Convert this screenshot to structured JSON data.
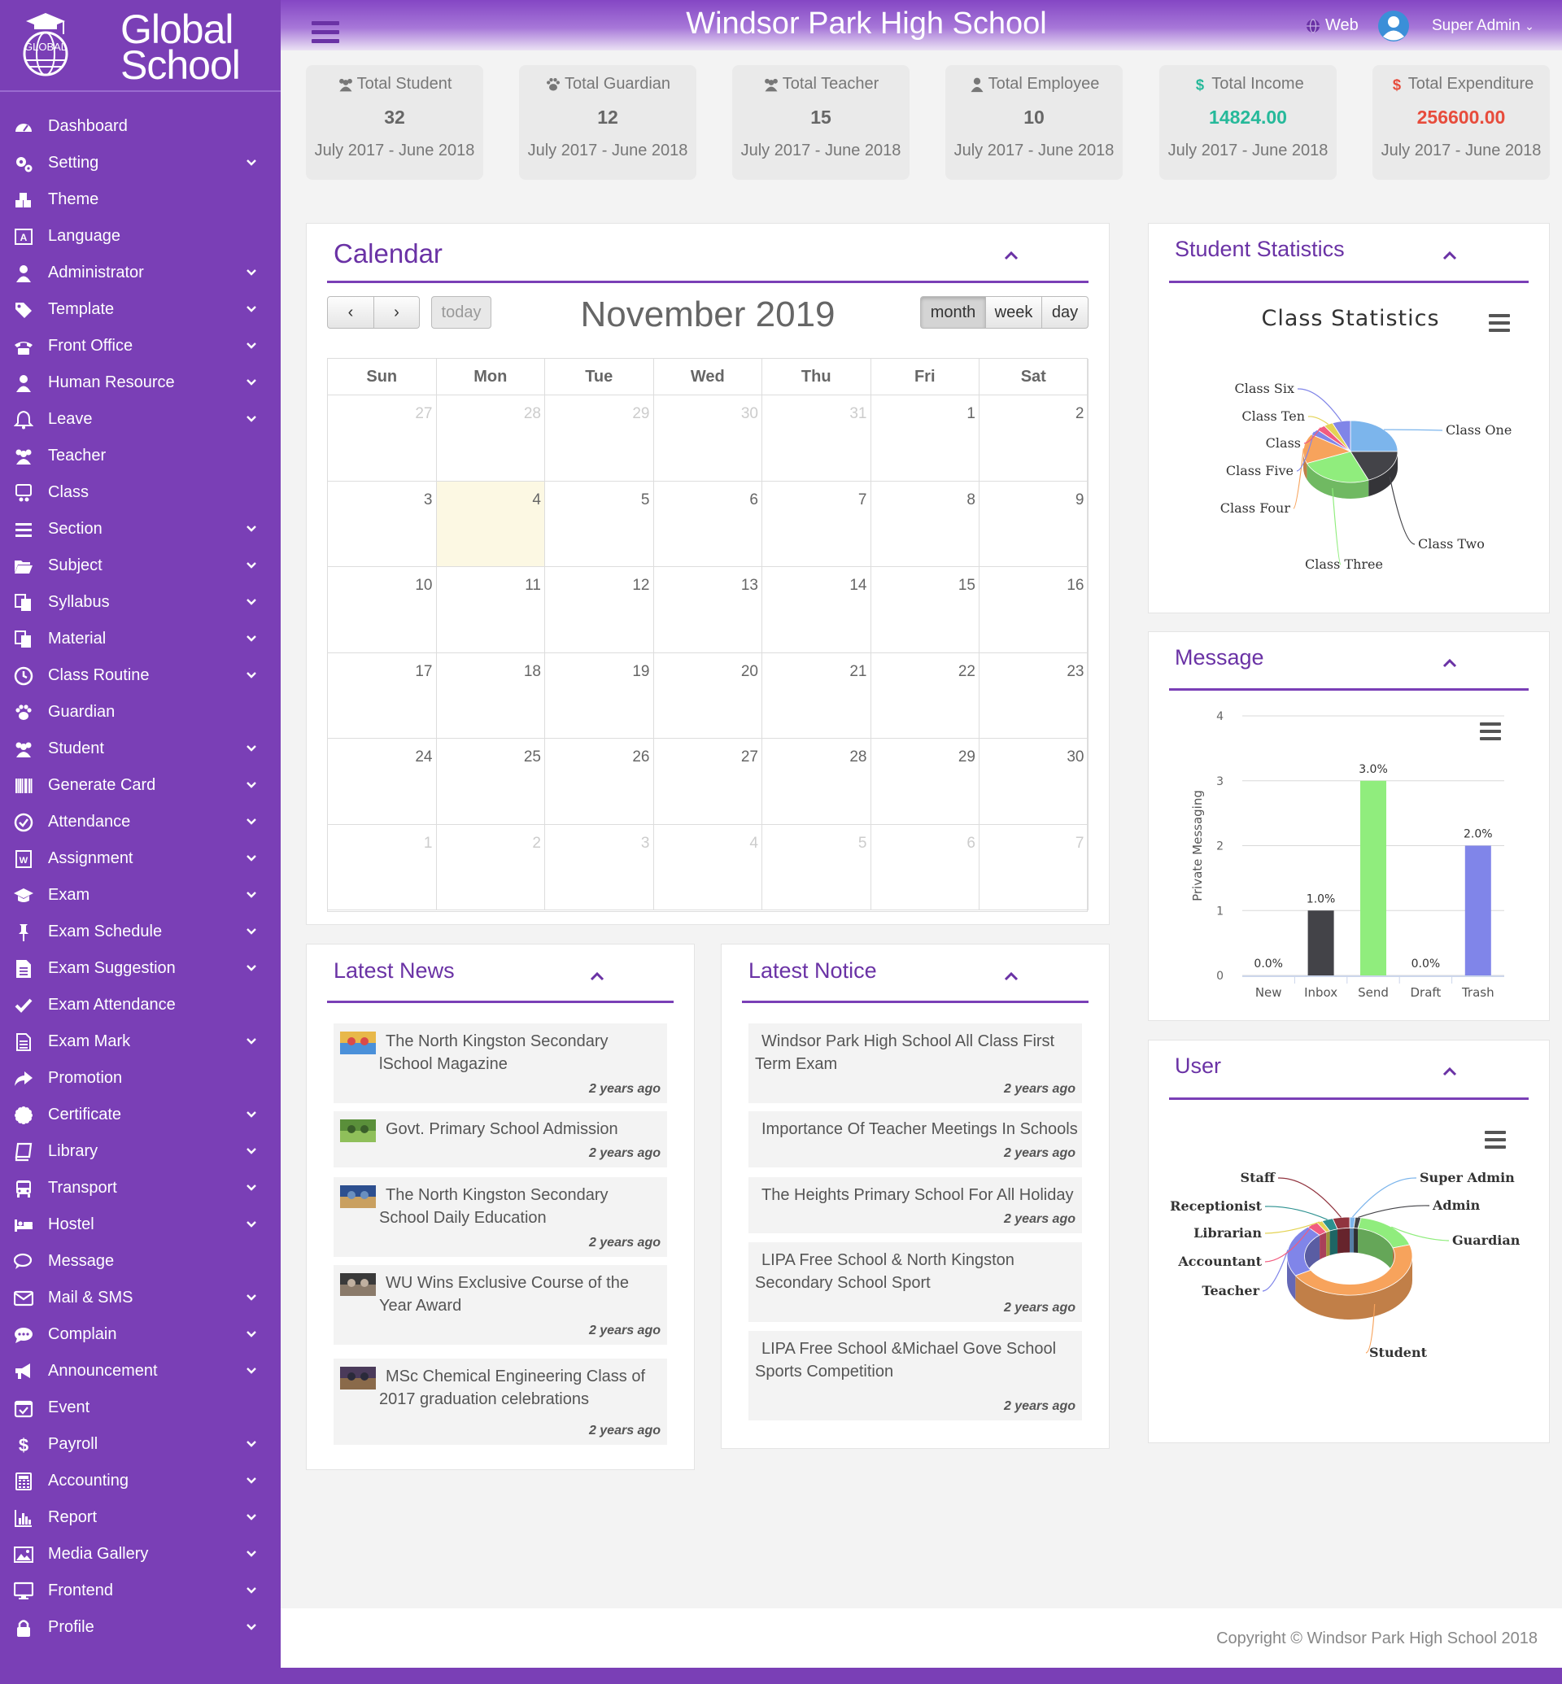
{
  "brand": {
    "logo_text": "GLOBAL",
    "name_line1": "Global",
    "name_line2": "School"
  },
  "header": {
    "title": "Windsor Park High School",
    "web_label": "Web",
    "user_label": "Super Admin"
  },
  "sidebar": {
    "items": [
      {
        "label": "Dashboard",
        "icon": "dashboard-icon",
        "chevron": false
      },
      {
        "label": "Setting",
        "icon": "gears-icon",
        "chevron": true
      },
      {
        "label": "Theme",
        "icon": "cubes-icon",
        "chevron": false
      },
      {
        "label": "Language",
        "icon": "language-icon",
        "chevron": false
      },
      {
        "label": "Administrator",
        "icon": "user-icon",
        "chevron": true
      },
      {
        "label": "Template",
        "icon": "tags-icon",
        "chevron": true
      },
      {
        "label": "Front Office",
        "icon": "phone-icon",
        "chevron": true
      },
      {
        "label": "Human Resource",
        "icon": "user-tie-icon",
        "chevron": true
      },
      {
        "label": "Leave",
        "icon": "bell-icon",
        "chevron": true
      },
      {
        "label": "Teacher",
        "icon": "users-icon",
        "chevron": false
      },
      {
        "label": "Class",
        "icon": "class-icon",
        "chevron": false
      },
      {
        "label": "Section",
        "icon": "bars-icon",
        "chevron": true
      },
      {
        "label": "Subject",
        "icon": "folder-open-icon",
        "chevron": true
      },
      {
        "label": "Syllabus",
        "icon": "files-icon",
        "chevron": true
      },
      {
        "label": "Material",
        "icon": "copy-icon",
        "chevron": true
      },
      {
        "label": "Class Routine",
        "icon": "clock-icon",
        "chevron": true
      },
      {
        "label": "Guardian",
        "icon": "paw-icon",
        "chevron": false
      },
      {
        "label": "Student",
        "icon": "group-icon",
        "chevron": true
      },
      {
        "label": "Generate Card",
        "icon": "barcode-icon",
        "chevron": true
      },
      {
        "label": "Attendance",
        "icon": "check-circle-icon",
        "chevron": true
      },
      {
        "label": "Assignment",
        "icon": "word-file-icon",
        "chevron": true
      },
      {
        "label": "Exam",
        "icon": "graduation-cap-icon",
        "chevron": true
      },
      {
        "label": "Exam Schedule",
        "icon": "thumbtack-icon",
        "chevron": true
      },
      {
        "label": "Exam Suggestion",
        "icon": "file-icon",
        "chevron": true
      },
      {
        "label": "Exam Attendance",
        "icon": "check-icon",
        "chevron": false
      },
      {
        "label": "Exam Mark",
        "icon": "file-text-icon",
        "chevron": true
      },
      {
        "label": "Promotion",
        "icon": "share-icon",
        "chevron": false
      },
      {
        "label": "Certificate",
        "icon": "certificate-icon",
        "chevron": true
      },
      {
        "label": "Library",
        "icon": "book-icon",
        "chevron": true
      },
      {
        "label": "Transport",
        "icon": "bus-icon",
        "chevron": true
      },
      {
        "label": "Hostel",
        "icon": "bed-icon",
        "chevron": true
      },
      {
        "label": "Message",
        "icon": "comments-icon",
        "chevron": false
      },
      {
        "label": "Mail & SMS",
        "icon": "envelope-icon",
        "chevron": true
      },
      {
        "label": "Complain",
        "icon": "comment-dots-icon",
        "chevron": true
      },
      {
        "label": "Announcement",
        "icon": "bullhorn-icon",
        "chevron": true
      },
      {
        "label": "Event",
        "icon": "calendar-check-icon",
        "chevron": false
      },
      {
        "label": "Payroll",
        "icon": "dollar-icon",
        "chevron": true
      },
      {
        "label": "Accounting",
        "icon": "calculator-icon",
        "chevron": true
      },
      {
        "label": "Report",
        "icon": "bar-chart-icon",
        "chevron": true
      },
      {
        "label": "Media Gallery",
        "icon": "image-icon",
        "chevron": true
      },
      {
        "label": "Frontend",
        "icon": "desktop-icon",
        "chevron": true
      },
      {
        "label": "Profile",
        "icon": "lock-icon",
        "chevron": true
      }
    ]
  },
  "stats": [
    {
      "label": "Total Student",
      "value": "32",
      "period": "July 2017 - June 2018",
      "icon": "users-icon",
      "color": "#666666"
    },
    {
      "label": "Total Guardian",
      "value": "12",
      "period": "July 2017 - June 2018",
      "icon": "paw-icon",
      "color": "#666666"
    },
    {
      "label": "Total Teacher",
      "value": "15",
      "period": "July 2017 - June 2018",
      "icon": "users-icon",
      "color": "#666666"
    },
    {
      "label": "Total Employee",
      "value": "10",
      "period": "July 2017 - June 2018",
      "icon": "user-tie-icon",
      "color": "#666666"
    },
    {
      "label": "Total Income",
      "value": "14824.00",
      "period": "July 2017 - June 2018",
      "icon": "dollar-icon",
      "color": "#26b99a"
    },
    {
      "label": "Total Expenditure",
      "value": "256600.00",
      "period": "July 2017 - June 2018",
      "icon": "dollar-icon",
      "color": "#e74c3c"
    }
  ],
  "calendar": {
    "title": "Calendar",
    "month_label": "November 2019",
    "today_label": "today",
    "prev_symbol": "‹",
    "next_symbol": "›",
    "views": [
      "month",
      "week",
      "day"
    ],
    "active_view": "month",
    "weekdays": [
      "Sun",
      "Mon",
      "Tue",
      "Wed",
      "Thu",
      "Fri",
      "Sat"
    ],
    "weeks": [
      [
        "27",
        "28",
        "29",
        "30",
        "31",
        "1",
        "2"
      ],
      [
        "3",
        "4",
        "5",
        "6",
        "7",
        "8",
        "9"
      ],
      [
        "10",
        "11",
        "12",
        "13",
        "14",
        "15",
        "16"
      ],
      [
        "17",
        "18",
        "19",
        "20",
        "21",
        "22",
        "23"
      ],
      [
        "24",
        "25",
        "26",
        "27",
        "28",
        "29",
        "30"
      ],
      [
        "1",
        "2",
        "3",
        "4",
        "5",
        "6",
        "7"
      ]
    ],
    "today": "4"
  },
  "news": {
    "title": "Latest News",
    "items": [
      {
        "title_line1": "The North Kingston Secondary",
        "title_line2": "lSchool Magazine",
        "time": "2 years ago"
      },
      {
        "title_line1": "Govt. Primary School Admission",
        "title_line2": "",
        "time": "2 years ago"
      },
      {
        "title_line1": "The North Kingston Secondary",
        "title_line2": "School Daily Education",
        "time": "2 years ago"
      },
      {
        "title_line1": "WU Wins Exclusive Course of the",
        "title_line2": "Year Award",
        "time": "2 years ago"
      },
      {
        "title_line1": "MSc Chemical Engineering Class of",
        "title_line2": "2017 graduation celebrations",
        "time": "2 years ago"
      }
    ]
  },
  "notice": {
    "title": "Latest Notice",
    "items": [
      {
        "title_line1": "Windsor Park High School All Class First",
        "title_line2": "Term Exam",
        "time": "2 years ago"
      },
      {
        "title_line1": "Importance Of Teacher Meetings In Schools",
        "title_line2": "",
        "time": "2 years ago"
      },
      {
        "title_line1": "The Heights Primary School For All Holiday",
        "title_line2": "",
        "time": "2 years ago"
      },
      {
        "title_line1": "LIPA Free School & North Kingston",
        "title_line2": "Secondary School Sport",
        "time": "2 years ago"
      },
      {
        "title_line1": "LIPA Free School &Michael Gove School",
        "title_line2": "Sports Competition",
        "time": "2 years ago"
      }
    ]
  },
  "student_stats": {
    "title": "Student Statistics",
    "chart_title": "Class Statistics",
    "chart_data": {
      "type": "pie",
      "title": "Class Statistics",
      "slices": [
        {
          "name": "Class One",
          "value": 8,
          "color": "#7cb5ec"
        },
        {
          "name": "Class Two",
          "value": 6,
          "color": "#434348"
        },
        {
          "name": "Class Three",
          "value": 8,
          "color": "#90ed7d"
        },
        {
          "name": "Class Four",
          "value": 5,
          "color": "#f7a35c"
        },
        {
          "name": "Class Five",
          "value": 1,
          "color": "#8085e9"
        },
        {
          "name": "Class",
          "value": 1,
          "color": "#f15c80"
        },
        {
          "name": "Class Ten",
          "value": 1,
          "color": "#e4d354"
        },
        {
          "name": "Class Six",
          "value": 2,
          "color": "#8085e8"
        }
      ]
    }
  },
  "message": {
    "title": "Message",
    "chart_data": {
      "type": "bar",
      "categories": [
        "New",
        "Inbox",
        "Send",
        "Draft",
        "Trash"
      ],
      "values": [
        0,
        1,
        3,
        0,
        2
      ],
      "data_labels": [
        "0.0%",
        "1.0%",
        "3.0%",
        "0.0%",
        "2.0%"
      ],
      "colors": [
        "#7cb5ec",
        "#434348",
        "#90ed7d",
        "#f7a35c",
        "#8085e9"
      ],
      "ylabel": "Private Messaging",
      "ylim": [
        0,
        4
      ],
      "yticks": [
        "0",
        "1",
        "2",
        "3",
        "4"
      ],
      "grid": true
    }
  },
  "user": {
    "title": "User",
    "chart_data": {
      "type": "pie",
      "donut": true,
      "slices": [
        {
          "name": "Super Admin",
          "value": 1,
          "color": "#7cb5ec"
        },
        {
          "name": "Admin",
          "value": 1,
          "color": "#434348"
        },
        {
          "name": "Guardian",
          "value": 12,
          "color": "#90ed7d"
        },
        {
          "name": "Student",
          "value": 32,
          "color": "#f7a35c"
        },
        {
          "name": "Teacher",
          "value": 15,
          "color": "#8085e9"
        },
        {
          "name": "Accountant",
          "value": 2,
          "color": "#f15c80"
        },
        {
          "name": "Librarian",
          "value": 1,
          "color": "#e4d354"
        },
        {
          "name": "Receptionist",
          "value": 2,
          "color": "#2b908f"
        },
        {
          "name": "Staff",
          "value": 3,
          "color": "#91343f"
        }
      ]
    }
  },
  "footer": {
    "copyright": "Copyright © Windsor Park High School 2018"
  }
}
